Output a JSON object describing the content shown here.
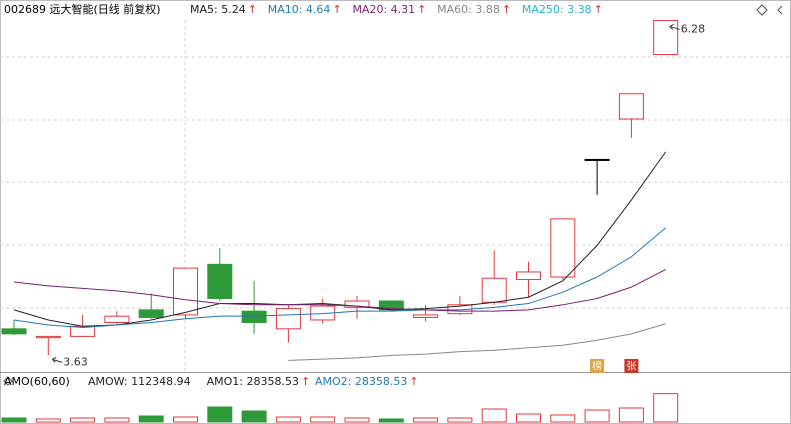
{
  "chart_data": {
    "type": "candlestick",
    "title": "002689 远大智能(日线 前复权)",
    "candles": {
      "open": [
        3.84,
        3.77,
        3.78,
        3.89,
        3.99,
        3.95,
        4.35,
        3.98,
        3.84,
        3.91,
        4.01,
        4.06,
        3.93,
        3.96,
        4.05,
        4.23,
        4.25,
        5.18,
        5.5,
        6.01
      ],
      "close": [
        3.8,
        3.78,
        3.86,
        3.94,
        3.93,
        4.32,
        4.08,
        3.89,
        4.0,
        4.02,
        4.06,
        3.99,
        3.95,
        4.03,
        4.24,
        4.29,
        4.71,
        5.18,
        5.7,
        6.28
      ],
      "high": [
        3.91,
        3.78,
        3.95,
        3.98,
        4.12,
        4.32,
        4.48,
        4.22,
        4.03,
        4.08,
        4.1,
        4.06,
        4.03,
        4.1,
        4.46,
        4.37,
        4.71,
        5.18,
        5.7,
        6.28
      ],
      "low": [
        3.79,
        3.63,
        3.78,
        3.87,
        3.92,
        3.92,
        4.06,
        3.8,
        3.73,
        3.88,
        3.92,
        3.99,
        3.9,
        3.95,
        4.03,
        4.09,
        4.23,
        4.9,
        5.35,
        6.01
      ]
    },
    "ylim": [
      3.53,
      6.41
    ],
    "series": [
      {
        "name": "MA5",
        "label": "MA5: 5.24",
        "trend": "↑",
        "color": "#222222",
        "values": [
          3.99,
          3.91,
          3.86,
          3.87,
          3.91,
          3.97,
          4.04,
          4.04,
          4.03,
          4.04,
          4.02,
          3.99,
          4.0,
          4.02,
          4.05,
          4.09,
          4.22,
          4.5,
          4.86,
          5.24
        ]
      },
      {
        "name": "MA10",
        "label": "MA10: 4.64",
        "trend": "↑",
        "color": "#1f78b4",
        "values": [
          3.91,
          3.87,
          3.85,
          3.87,
          3.89,
          3.92,
          3.94,
          3.94,
          3.95,
          3.96,
          3.98,
          3.98,
          3.99,
          3.99,
          4.01,
          4.04,
          4.13,
          4.25,
          4.41,
          4.64
        ]
      },
      {
        "name": "MA20",
        "label": "MA20: 4.31",
        "trend": "↑",
        "color": "#7b1f6e",
        "values": [
          4.21,
          4.18,
          4.16,
          4.14,
          4.11,
          4.07,
          4.04,
          4.03,
          4.03,
          4.03,
          4.02,
          4.0,
          3.99,
          3.98,
          3.98,
          3.99,
          4.03,
          4.08,
          4.17,
          4.31
        ]
      },
      {
        "name": "MA60",
        "label": "MA60: 3.88",
        "trend": "↑",
        "color": "#888888",
        "values": [
          null,
          null,
          null,
          null,
          null,
          null,
          null,
          null,
          3.59,
          3.6,
          3.61,
          3.63,
          3.64,
          3.66,
          3.67,
          3.69,
          3.71,
          3.75,
          3.8,
          3.88
        ]
      },
      {
        "name": "MA250",
        "label": "MA250: 3.38",
        "trend": "↑",
        "color": "#22b5c8",
        "values": [
          null,
          null,
          null,
          null,
          null,
          null,
          null,
          null,
          null,
          null,
          null,
          null,
          null,
          null,
          null,
          null,
          null,
          null,
          null,
          null
        ]
      }
    ],
    "annotations": [
      {
        "label": "6.28",
        "value": 6.28,
        "index": 19
      },
      {
        "label": "3.63",
        "value": 3.63,
        "index": 1
      }
    ],
    "tags": [
      {
        "label": "榜",
        "index": 17
      },
      {
        "label": "张",
        "index": 18
      }
    ],
    "volume": {
      "title": "AMO(60,60)",
      "legend": [
        {
          "label": "AMOW: 112348.94",
          "color": "#222222",
          "trend": ""
        },
        {
          "label": "AMO1: 28358.53",
          "color": "#222222",
          "trend": "↑"
        },
        {
          "label": "AMO2: 28358.53",
          "color": "#1f78b4",
          "trend": "↑"
        }
      ],
      "values": [
        4000,
        3000,
        4000,
        4000,
        6000,
        5000,
        15000,
        11000,
        5000,
        5000,
        4000,
        3000,
        4000,
        4000,
        13000,
        8000,
        7000,
        12000,
        14000,
        28358.53
      ],
      "ylim": [
        0,
        32000
      ]
    }
  }
}
